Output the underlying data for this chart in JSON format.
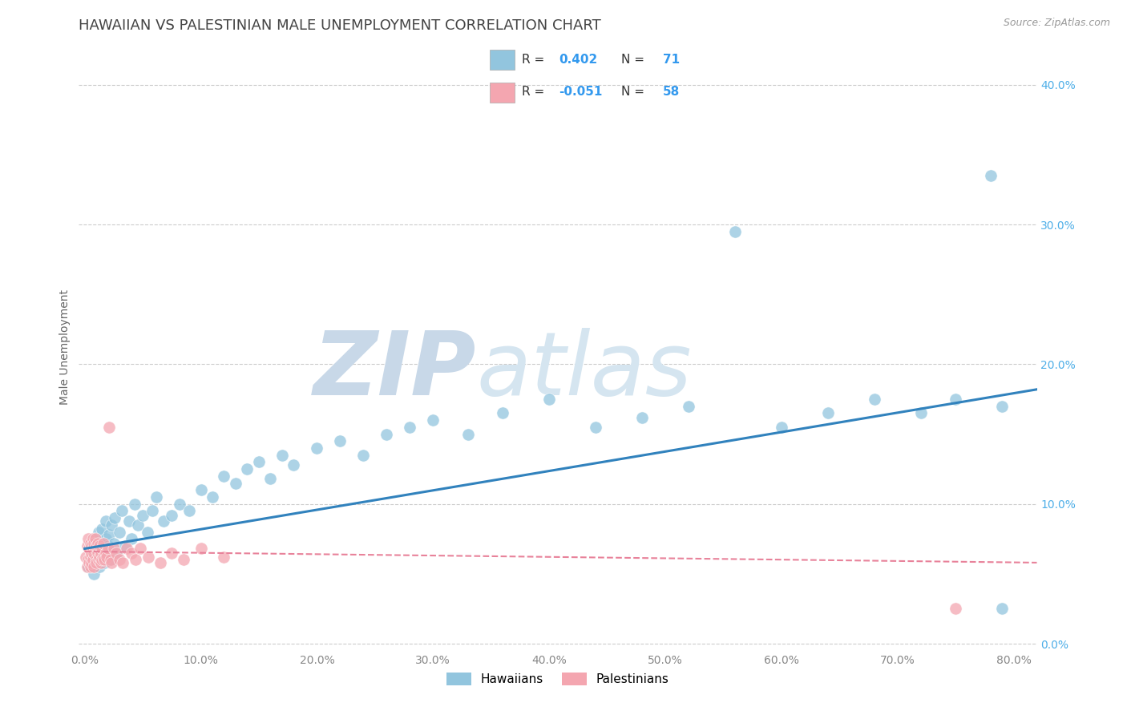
{
  "title": "HAWAIIAN VS PALESTINIAN MALE UNEMPLOYMENT CORRELATION CHART",
  "source_text": "Source: ZipAtlas.com",
  "xlabel": "",
  "ylabel": "Male Unemployment",
  "x_ticks": [
    0.0,
    0.1,
    0.2,
    0.3,
    0.4,
    0.5,
    0.6,
    0.7,
    0.8
  ],
  "x_tick_labels": [
    "0.0%",
    "10.0%",
    "20.0%",
    "30.0%",
    "40.0%",
    "50.0%",
    "60.0%",
    "70.0%",
    "80.0%"
  ],
  "y_ticks": [
    0.0,
    0.1,
    0.2,
    0.3,
    0.4
  ],
  "y_tick_labels": [
    "0.0%",
    "10.0%",
    "20.0%",
    "30.0%",
    "40.0%"
  ],
  "xlim": [
    -0.005,
    0.82
  ],
  "ylim": [
    -0.005,
    0.43
  ],
  "hawaiians_color": "#92c5de",
  "palestinians_color": "#f4a6b0",
  "trend_hawaiians_color": "#3182bd",
  "trend_palestinians_color": "#e8829a",
  "background_color": "#ffffff",
  "grid_color": "#cccccc",
  "watermark_color": "#dce8f0",
  "title_fontsize": 13,
  "axis_label_fontsize": 10,
  "tick_fontsize": 10,
  "hawaiians_x": [
    0.003,
    0.005,
    0.007,
    0.008,
    0.009,
    0.01,
    0.01,
    0.011,
    0.012,
    0.012,
    0.013,
    0.014,
    0.015,
    0.015,
    0.016,
    0.017,
    0.018,
    0.018,
    0.019,
    0.02,
    0.021,
    0.022,
    0.023,
    0.025,
    0.026,
    0.028,
    0.03,
    0.032,
    0.035,
    0.038,
    0.04,
    0.043,
    0.046,
    0.05,
    0.054,
    0.058,
    0.062,
    0.068,
    0.075,
    0.082,
    0.09,
    0.1,
    0.11,
    0.12,
    0.13,
    0.14,
    0.15,
    0.16,
    0.17,
    0.18,
    0.2,
    0.22,
    0.24,
    0.26,
    0.28,
    0.3,
    0.33,
    0.36,
    0.4,
    0.44,
    0.48,
    0.52,
    0.56,
    0.6,
    0.64,
    0.68,
    0.72,
    0.75,
    0.78,
    0.79,
    0.79
  ],
  "hawaiians_y": [
    0.055,
    0.06,
    0.065,
    0.05,
    0.07,
    0.058,
    0.075,
    0.062,
    0.068,
    0.08,
    0.055,
    0.072,
    0.065,
    0.082,
    0.07,
    0.058,
    0.075,
    0.088,
    0.063,
    0.07,
    0.078,
    0.06,
    0.085,
    0.072,
    0.09,
    0.065,
    0.08,
    0.095,
    0.07,
    0.088,
    0.075,
    0.1,
    0.085,
    0.092,
    0.08,
    0.095,
    0.105,
    0.088,
    0.092,
    0.1,
    0.095,
    0.11,
    0.105,
    0.12,
    0.115,
    0.125,
    0.13,
    0.118,
    0.135,
    0.128,
    0.14,
    0.145,
    0.135,
    0.15,
    0.155,
    0.16,
    0.15,
    0.165,
    0.175,
    0.155,
    0.162,
    0.17,
    0.295,
    0.155,
    0.165,
    0.175,
    0.165,
    0.175,
    0.335,
    0.17,
    0.025
  ],
  "palestinians_x": [
    0.001,
    0.002,
    0.002,
    0.003,
    0.003,
    0.004,
    0.004,
    0.005,
    0.005,
    0.005,
    0.006,
    0.006,
    0.006,
    0.007,
    0.007,
    0.007,
    0.008,
    0.008,
    0.008,
    0.009,
    0.009,
    0.01,
    0.01,
    0.01,
    0.011,
    0.011,
    0.012,
    0.012,
    0.013,
    0.013,
    0.014,
    0.014,
    0.015,
    0.015,
    0.016,
    0.016,
    0.017,
    0.018,
    0.019,
    0.02,
    0.021,
    0.022,
    0.023,
    0.025,
    0.027,
    0.03,
    0.033,
    0.036,
    0.04,
    0.044,
    0.048,
    0.055,
    0.065,
    0.075,
    0.085,
    0.1,
    0.12,
    0.75
  ],
  "palestinians_y": [
    0.062,
    0.055,
    0.07,
    0.06,
    0.075,
    0.058,
    0.068,
    0.062,
    0.072,
    0.055,
    0.065,
    0.07,
    0.058,
    0.068,
    0.075,
    0.06,
    0.065,
    0.072,
    0.055,
    0.068,
    0.075,
    0.06,
    0.07,
    0.058,
    0.065,
    0.072,
    0.06,
    0.068,
    0.062,
    0.07,
    0.058,
    0.065,
    0.06,
    0.068,
    0.062,
    0.072,
    0.06,
    0.065,
    0.062,
    0.068,
    0.155,
    0.06,
    0.058,
    0.068,
    0.065,
    0.06,
    0.058,
    0.068,
    0.065,
    0.06,
    0.068,
    0.062,
    0.058,
    0.065,
    0.06,
    0.068,
    0.062,
    0.025
  ],
  "haw_trend_x": [
    0.0,
    0.82
  ],
  "haw_trend_y": [
    0.068,
    0.182
  ],
  "pal_trend_x": [
    0.0,
    0.82
  ],
  "pal_trend_y": [
    0.066,
    0.058
  ]
}
